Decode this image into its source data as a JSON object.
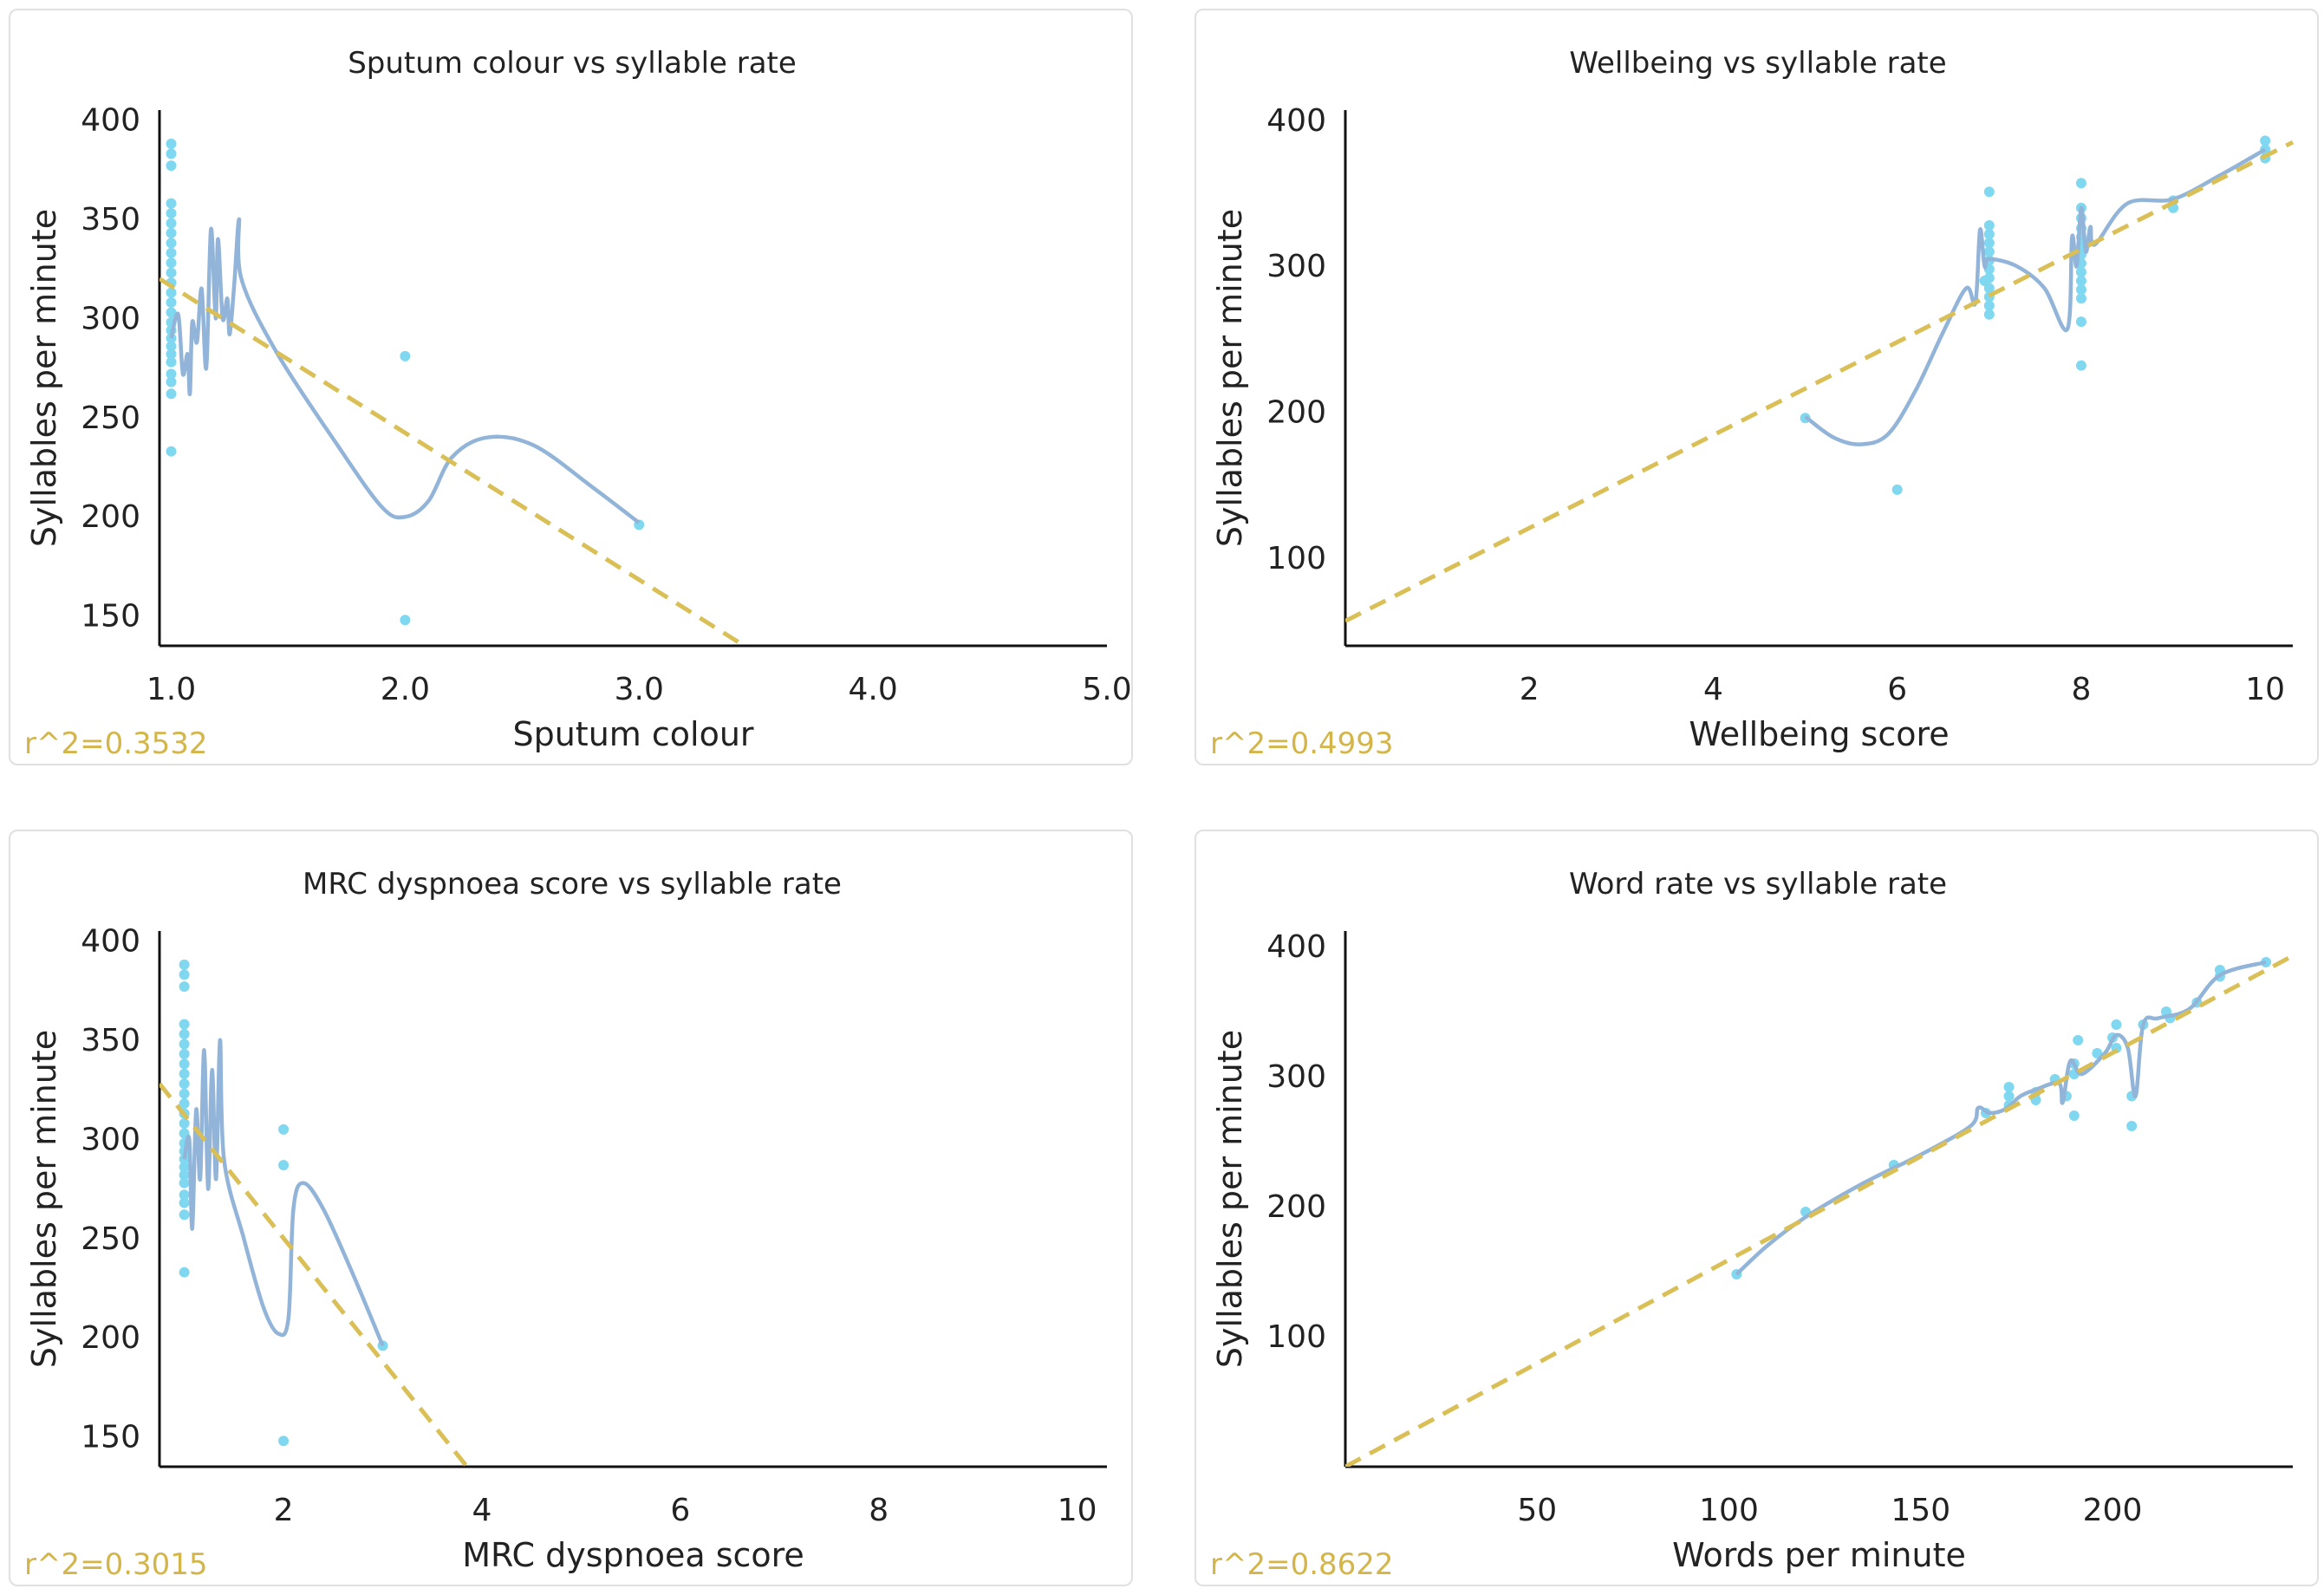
{
  "colors": {
    "points": "#7fd8f0",
    "smooth": "#92b4d8",
    "trend": "#d9bf55",
    "axis": "#111111",
    "r2": "#d4b54a"
  },
  "chart_data": [
    {
      "type": "scatter",
      "title": "Sputum colour vs syllable rate",
      "xlabel": "Sputum colour",
      "ylabel": "Syllables per minute",
      "r2_label": "r^2=0.3532",
      "xlim": [
        0.95,
        5.0
      ],
      "ylim": [
        135,
        405
      ],
      "xticks": [
        1.0,
        2.0,
        3.0,
        4.0,
        5.0
      ],
      "xtick_labels": [
        "1.0",
        "2.0",
        "3.0",
        "4.0",
        "5.0"
      ],
      "yticks": [
        150,
        200,
        250,
        300,
        350,
        400
      ],
      "ytick_labels": [
        "150",
        "200",
        "250",
        "300",
        "350",
        "400"
      ],
      "trend": [
        [
          0.95,
          320
        ],
        [
          3.45,
          135
        ]
      ],
      "points": [
        [
          1.0,
          388
        ],
        [
          1.0,
          383
        ],
        [
          1.0,
          377
        ],
        [
          1.0,
          358
        ],
        [
          1.0,
          353
        ],
        [
          1.0,
          348
        ],
        [
          1.0,
          343
        ],
        [
          1.0,
          338
        ],
        [
          1.0,
          333
        ],
        [
          1.0,
          328
        ],
        [
          1.0,
          323
        ],
        [
          1.0,
          318
        ],
        [
          1.0,
          313
        ],
        [
          1.0,
          308
        ],
        [
          1.0,
          303
        ],
        [
          1.0,
          298
        ],
        [
          1.0,
          294
        ],
        [
          1.0,
          290
        ],
        [
          1.0,
          286
        ],
        [
          1.0,
          282
        ],
        [
          1.0,
          278
        ],
        [
          1.0,
          272
        ],
        [
          1.0,
          268
        ],
        [
          1.0,
          262
        ],
        [
          1.0,
          233
        ],
        [
          2.0,
          281
        ],
        [
          2.0,
          148
        ],
        [
          3.0,
          196
        ]
      ],
      "smooth": [
        [
          1.0,
          290
        ],
        [
          1.03,
          302
        ],
        [
          1.05,
          272
        ],
        [
          1.07,
          282
        ],
        [
          1.08,
          262
        ],
        [
          1.09,
          298
        ],
        [
          1.11,
          288
        ],
        [
          1.13,
          315
        ],
        [
          1.15,
          275
        ],
        [
          1.17,
          345
        ],
        [
          1.19,
          300
        ],
        [
          1.2,
          340
        ],
        [
          1.22,
          300
        ],
        [
          1.24,
          310
        ],
        [
          1.25,
          292
        ],
        [
          1.27,
          318
        ],
        [
          1.29,
          350
        ],
        [
          1.3,
          320
        ],
        [
          1.45,
          283
        ],
        [
          1.7,
          238
        ],
        [
          1.9,
          205
        ],
        [
          2.0,
          200
        ],
        [
          2.1,
          208
        ],
        [
          2.2,
          230
        ],
        [
          2.35,
          240
        ],
        [
          2.55,
          236
        ],
        [
          2.8,
          215
        ],
        [
          3.0,
          197
        ]
      ]
    },
    {
      "type": "scatter",
      "title": "Wellbeing vs syllable rate",
      "xlabel": "Wellbeing score",
      "ylabel": "Syllables per minute",
      "r2_label": "r^2=0.4993",
      "xlim": [
        0.0,
        10.3
      ],
      "ylim": [
        40,
        407
      ],
      "xticks": [
        2,
        4,
        6,
        8,
        10
      ],
      "xtick_labels": [
        "2",
        "4",
        "6",
        "8",
        "10"
      ],
      "yticks": [
        100,
        200,
        300,
        400
      ],
      "ytick_labels": [
        "100",
        "200",
        "300",
        "400"
      ],
      "trend": [
        [
          0.0,
          57
        ],
        [
          10.3,
          385
        ]
      ],
      "points": [
        [
          5,
          196
        ],
        [
          6,
          147
        ],
        [
          6.95,
          290
        ],
        [
          7,
          351
        ],
        [
          7,
          328
        ],
        [
          7,
          322
        ],
        [
          7,
          316
        ],
        [
          7,
          310
        ],
        [
          7,
          304
        ],
        [
          7,
          298
        ],
        [
          7,
          292
        ],
        [
          7,
          285
        ],
        [
          7,
          279
        ],
        [
          7,
          273
        ],
        [
          7,
          267
        ],
        [
          8,
          357
        ],
        [
          8,
          340
        ],
        [
          8,
          333
        ],
        [
          8,
          326
        ],
        [
          8,
          320
        ],
        [
          8,
          314
        ],
        [
          8,
          308
        ],
        [
          8,
          302
        ],
        [
          8,
          296
        ],
        [
          8,
          290
        ],
        [
          8,
          284
        ],
        [
          8,
          278
        ],
        [
          8,
          262
        ],
        [
          8,
          232
        ],
        [
          9,
          345
        ],
        [
          9,
          340
        ],
        [
          10,
          386
        ],
        [
          10,
          380
        ],
        [
          10,
          374
        ]
      ],
      "smooth": [
        [
          5,
          197
        ],
        [
          5.3,
          183
        ],
        [
          5.6,
          178
        ],
        [
          5.9,
          185
        ],
        [
          6.2,
          215
        ],
        [
          6.5,
          255
        ],
        [
          6.75,
          285
        ],
        [
          6.85,
          275
        ],
        [
          6.9,
          325
        ],
        [
          6.95,
          300
        ],
        [
          7.0,
          305
        ],
        [
          7.3,
          300
        ],
        [
          7.6,
          285
        ],
        [
          7.85,
          257
        ],
        [
          7.9,
          320
        ],
        [
          7.95,
          300
        ],
        [
          8.0,
          340
        ],
        [
          8.05,
          310
        ],
        [
          8.1,
          327
        ],
        [
          8.15,
          315
        ],
        [
          8.5,
          343
        ],
        [
          9.0,
          346
        ],
        [
          9.5,
          362
        ],
        [
          10.0,
          380
        ]
      ]
    },
    {
      "type": "scatter",
      "title": "MRC dyspnoea score vs syllable rate",
      "xlabel": "MRC dyspnoea score",
      "ylabel": "Syllables per minute",
      "r2_label": "r^2=0.3015",
      "xlim": [
        0.75,
        10.3
      ],
      "ylim": [
        135,
        405
      ],
      "xticks": [
        2,
        4,
        6,
        8,
        10
      ],
      "xtick_labels": [
        "2",
        "4",
        "6",
        "8",
        "10"
      ],
      "yticks": [
        150,
        200,
        250,
        300,
        350,
        400
      ],
      "ytick_labels": [
        "150",
        "200",
        "250",
        "300",
        "350",
        "400"
      ],
      "trend": [
        [
          0.75,
          328
        ],
        [
          3.85,
          135
        ]
      ],
      "points": [
        [
          1,
          388
        ],
        [
          1,
          383
        ],
        [
          1,
          377
        ],
        [
          1,
          358
        ],
        [
          1,
          353
        ],
        [
          1,
          348
        ],
        [
          1,
          343
        ],
        [
          1,
          338
        ],
        [
          1,
          333
        ],
        [
          1,
          328
        ],
        [
          1,
          323
        ],
        [
          1,
          318
        ],
        [
          1,
          313
        ],
        [
          1,
          308
        ],
        [
          1,
          303
        ],
        [
          1,
          298
        ],
        [
          1,
          294
        ],
        [
          1,
          290
        ],
        [
          1,
          286
        ],
        [
          1,
          282
        ],
        [
          1,
          278
        ],
        [
          1,
          272
        ],
        [
          1,
          268
        ],
        [
          1,
          262
        ],
        [
          1,
          233
        ],
        [
          2,
          305
        ],
        [
          2,
          287
        ],
        [
          2,
          148
        ],
        [
          3,
          196
        ]
      ],
      "smooth": [
        [
          1.0,
          290
        ],
        [
          1.05,
          300
        ],
        [
          1.08,
          255
        ],
        [
          1.12,
          315
        ],
        [
          1.16,
          280
        ],
        [
          1.2,
          345
        ],
        [
          1.24,
          275
        ],
        [
          1.28,
          335
        ],
        [
          1.32,
          280
        ],
        [
          1.36,
          350
        ],
        [
          1.4,
          290
        ],
        [
          1.6,
          250
        ],
        [
          1.8,
          215
        ],
        [
          1.95,
          202
        ],
        [
          2.05,
          210
        ],
        [
          2.1,
          265
        ],
        [
          2.2,
          278
        ],
        [
          2.4,
          265
        ],
        [
          2.7,
          232
        ],
        [
          3.0,
          196
        ]
      ]
    },
    {
      "type": "scatter",
      "title": "Word rate vs syllable rate",
      "xlabel": "Words per minute",
      "ylabel": "Syllables per minute",
      "r2_label": "r^2=0.8622",
      "xlim": [
        0,
        247
      ],
      "ylim": [
        0,
        412
      ],
      "xticks": [
        50,
        100,
        150,
        200
      ],
      "xtick_labels": [
        "50",
        "100",
        "150",
        "200"
      ],
      "yticks": [
        100,
        200,
        300,
        400
      ],
      "ytick_labels": [
        "100",
        "200",
        "300",
        "400"
      ],
      "trend": [
        [
          0,
          0
        ],
        [
          247,
          393
        ]
      ],
      "points": [
        [
          102,
          148
        ],
        [
          120,
          196
        ],
        [
          143,
          232
        ],
        [
          167,
          272
        ],
        [
          173,
          292
        ],
        [
          173,
          285
        ],
        [
          173,
          278
        ],
        [
          180,
          288
        ],
        [
          180,
          282
        ],
        [
          185,
          298
        ],
        [
          188,
          285
        ],
        [
          190,
          310
        ],
        [
          190,
          302
        ],
        [
          190,
          270
        ],
        [
          191,
          328
        ],
        [
          196,
          318
        ],
        [
          200,
          330
        ],
        [
          201,
          340
        ],
        [
          201,
          322
        ],
        [
          205,
          285
        ],
        [
          205,
          262
        ],
        [
          208,
          340
        ],
        [
          214,
          350
        ],
        [
          215,
          345
        ],
        [
          222,
          357
        ],
        [
          228,
          382
        ],
        [
          228,
          377
        ],
        [
          240,
          388
        ]
      ],
      "smooth": [
        [
          102,
          148
        ],
        [
          110,
          170
        ],
        [
          120,
          192
        ],
        [
          135,
          218
        ],
        [
          150,
          240
        ],
        [
          163,
          262
        ],
        [
          165,
          276
        ],
        [
          168,
          272
        ],
        [
          172,
          275
        ],
        [
          176,
          285
        ],
        [
          180,
          290
        ],
        [
          186,
          295
        ],
        [
          187,
          280
        ],
        [
          189,
          312
        ],
        [
          192,
          302
        ],
        [
          198,
          318
        ],
        [
          201,
          332
        ],
        [
          204,
          322
        ],
        [
          206,
          285
        ],
        [
          208,
          340
        ],
        [
          212,
          345
        ],
        [
          220,
          352
        ],
        [
          228,
          378
        ],
        [
          240,
          388
        ]
      ]
    }
  ]
}
